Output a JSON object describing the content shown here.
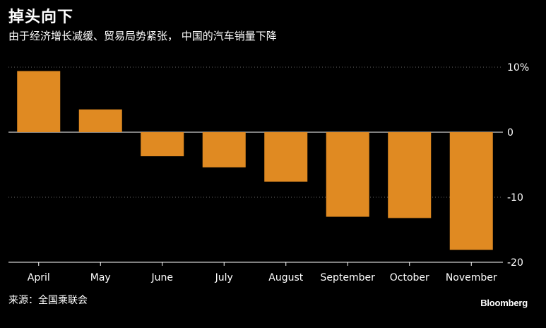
{
  "title": "掉头向下",
  "subtitle": "由于经济增长减缓、贸易局势紧张， 中国的汽车销量下降",
  "source": "来源：全国乘联会",
  "brand": "Bloomberg",
  "colors": {
    "background": "#000000",
    "bar": "#e08a22",
    "grid": "#666666",
    "axis": "#ffffff",
    "text": "#ffffff"
  },
  "chart_data": {
    "type": "bar",
    "title": "掉头向下",
    "subtitle": "由于经济增长减缓、贸易局势紧张， 中国的汽车销量下降",
    "categories": [
      "April",
      "May",
      "June",
      "July",
      "August",
      "September",
      "October",
      "November"
    ],
    "values": [
      9.4,
      3.5,
      -3.7,
      -5.4,
      -7.6,
      -13.0,
      -13.2,
      -18.1
    ],
    "ylim": [
      -20,
      10
    ],
    "yticks": [
      10,
      0,
      -10,
      -20
    ],
    "ytick_labels": [
      "10%",
      "0",
      "-10",
      "-20"
    ],
    "y_axis_position": "right",
    "grid": true,
    "xlabel": "",
    "ylabel": ""
  }
}
